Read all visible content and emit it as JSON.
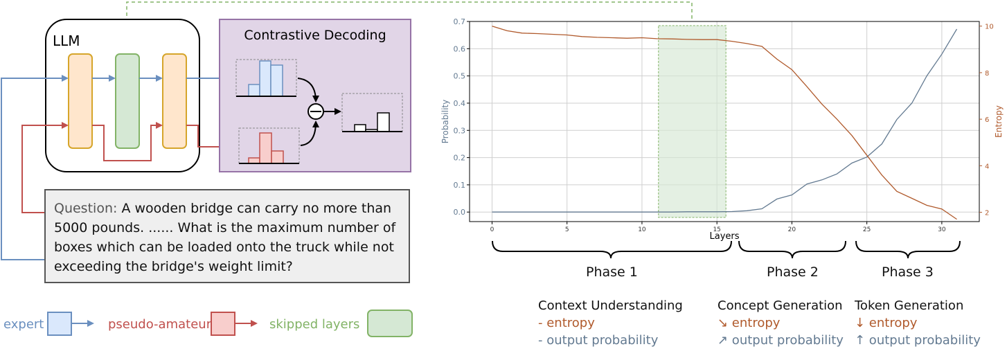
{
  "diagram": {
    "llm_label": "LLM",
    "cd_title": "Contrastive Decoding",
    "question_label": "Question:",
    "question_text": "A wooden bridge can carry no more than 5000 pounds. ...... What is the maximum number of boxes which can be loaded onto the truck while not exceeding the bridge's weight limit?",
    "legend": {
      "expert": "expert",
      "amateur": "pseudo-amateur",
      "skipped": "skipped layers"
    },
    "colors": {
      "expert": "#6a8fbf",
      "amateur": "#c0504d",
      "skipped": "#82b366",
      "orange_fill": "#ffe6cc",
      "orange_stroke": "#d6a52a",
      "green_fill": "#d5e8d4",
      "purple_fill": "#e1d5e7",
      "purple_stroke": "#9673a6",
      "blue_fill": "#dae8fc",
      "red_fill": "#f8cecc"
    }
  },
  "chart_data": {
    "type": "line",
    "xlabel": "Layers",
    "ylabel": "Probability",
    "y2label": "Entropy",
    "xlim": [
      -1.5,
      32.5
    ],
    "ylim": [
      -0.035,
      0.7
    ],
    "y2lim": [
      1.6,
      10.2
    ],
    "xticks": [
      0,
      5,
      10,
      15,
      20,
      25,
      30
    ],
    "yticks": [
      0.0,
      0.1,
      0.2,
      0.3,
      0.4,
      0.5,
      0.6,
      0.7
    ],
    "y2ticks": [
      2,
      4,
      6,
      8,
      10
    ],
    "grid": true,
    "skipped_region": [
      11.1,
      15.6
    ],
    "x": [
      0,
      1,
      2,
      3,
      4,
      5,
      6,
      7,
      8,
      9,
      10,
      11,
      12,
      13,
      14,
      15,
      16,
      17,
      18,
      19,
      20,
      21,
      22,
      23,
      24,
      25,
      26,
      27,
      28,
      29,
      30,
      31
    ],
    "series": [
      {
        "name": "",
        "axis": "left",
        "color": "#637a91",
        "values": [
          0.0,
          0.0,
          0.0,
          0.0,
          0.0,
          0.0,
          0.0,
          0.0,
          0.0,
          0.0,
          0.0,
          0.0,
          0.0,
          0.001,
          0.001,
          0.001,
          0.002,
          0.005,
          0.012,
          0.048,
          0.063,
          0.103,
          0.118,
          0.14,
          0.18,
          0.202,
          0.25,
          0.34,
          0.4,
          0.5,
          0.58,
          0.672
        ]
      },
      {
        "name": "",
        "axis": "right",
        "color": "#b05a2c",
        "values": [
          10.0,
          9.8,
          9.7,
          9.68,
          9.65,
          9.62,
          9.55,
          9.52,
          9.5,
          9.48,
          9.5,
          9.46,
          9.45,
          9.43,
          9.42,
          9.42,
          9.35,
          9.25,
          9.13,
          8.58,
          8.13,
          7.4,
          6.65,
          6.0,
          5.3,
          4.45,
          3.6,
          2.9,
          2.6,
          2.3,
          2.14,
          1.7
        ]
      }
    ]
  },
  "phases": {
    "labels": [
      "Phase 1",
      "Phase 2",
      "Phase 3"
    ],
    "columns": [
      {
        "title": "Context Understanding",
        "entropy": "- entropy",
        "prob": "- output probability"
      },
      {
        "title": "Concept Generation",
        "entropy": "↘ entropy",
        "prob": "↗ output probability"
      },
      {
        "title": "Token Generation",
        "entropy": "↓ entropy",
        "prob": "↑ output probability"
      }
    ]
  }
}
